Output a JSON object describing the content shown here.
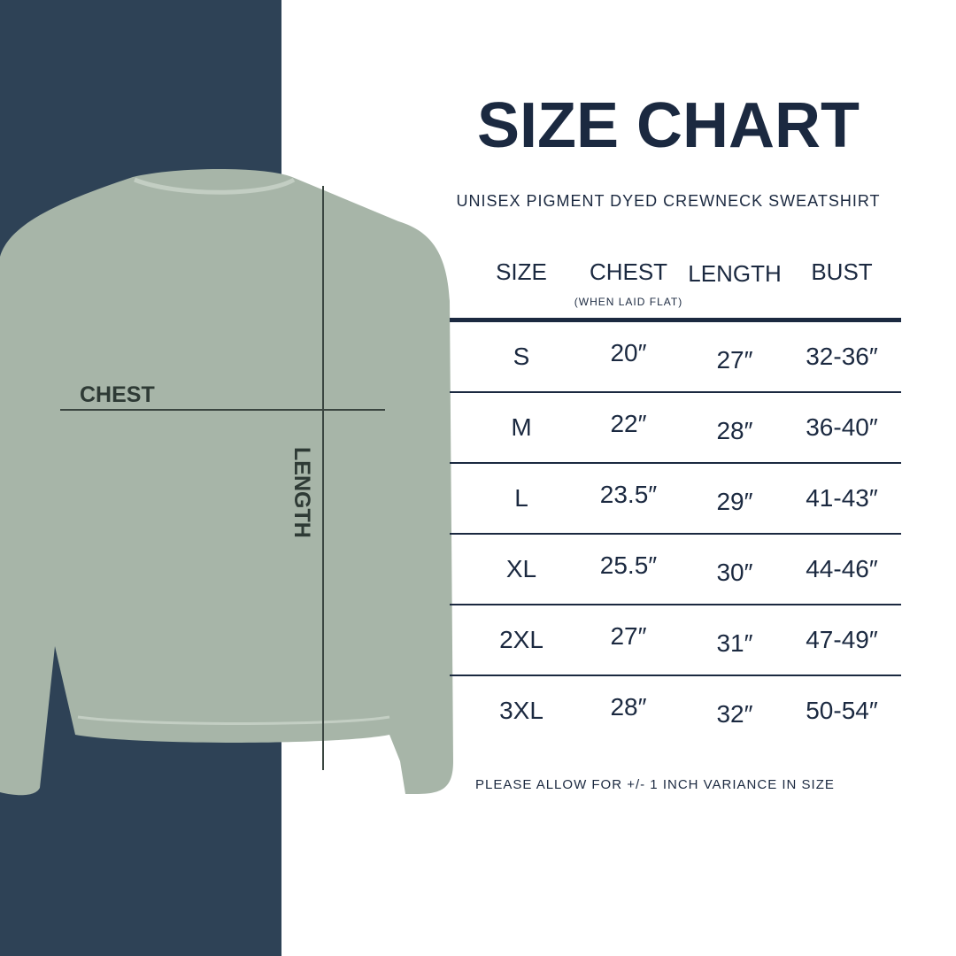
{
  "title": "SIZE CHART",
  "subtitle": "UNISEX PIGMENT DYED CREWNECK SWEATSHIRT",
  "colors": {
    "navy_panel": "#2e4256",
    "text": "#1b2940",
    "sweatshirt": "#a7b5a8",
    "background": "#ffffff"
  },
  "diagram": {
    "chest_label": "CHEST",
    "length_label": "LENGTH"
  },
  "table": {
    "headers": [
      "SIZE",
      "CHEST",
      "LENGTH",
      "BUST"
    ],
    "chest_note": "(WHEN LAID FLAT)",
    "rows": [
      [
        "S",
        "20″",
        "27″",
        "32-36″"
      ],
      [
        "M",
        "22″",
        "28″",
        "36-40″"
      ],
      [
        "L",
        "23.5″",
        "29″",
        "41-43″"
      ],
      [
        "XL",
        "25.5″",
        "30″",
        "44-46″"
      ],
      [
        "2XL",
        "27″",
        "31″",
        "47-49″"
      ],
      [
        "3XL",
        "28″",
        "32″",
        "50-54″"
      ]
    ]
  },
  "footnote": "PLEASE ALLOW FOR +/- 1 INCH VARIANCE IN SIZE"
}
